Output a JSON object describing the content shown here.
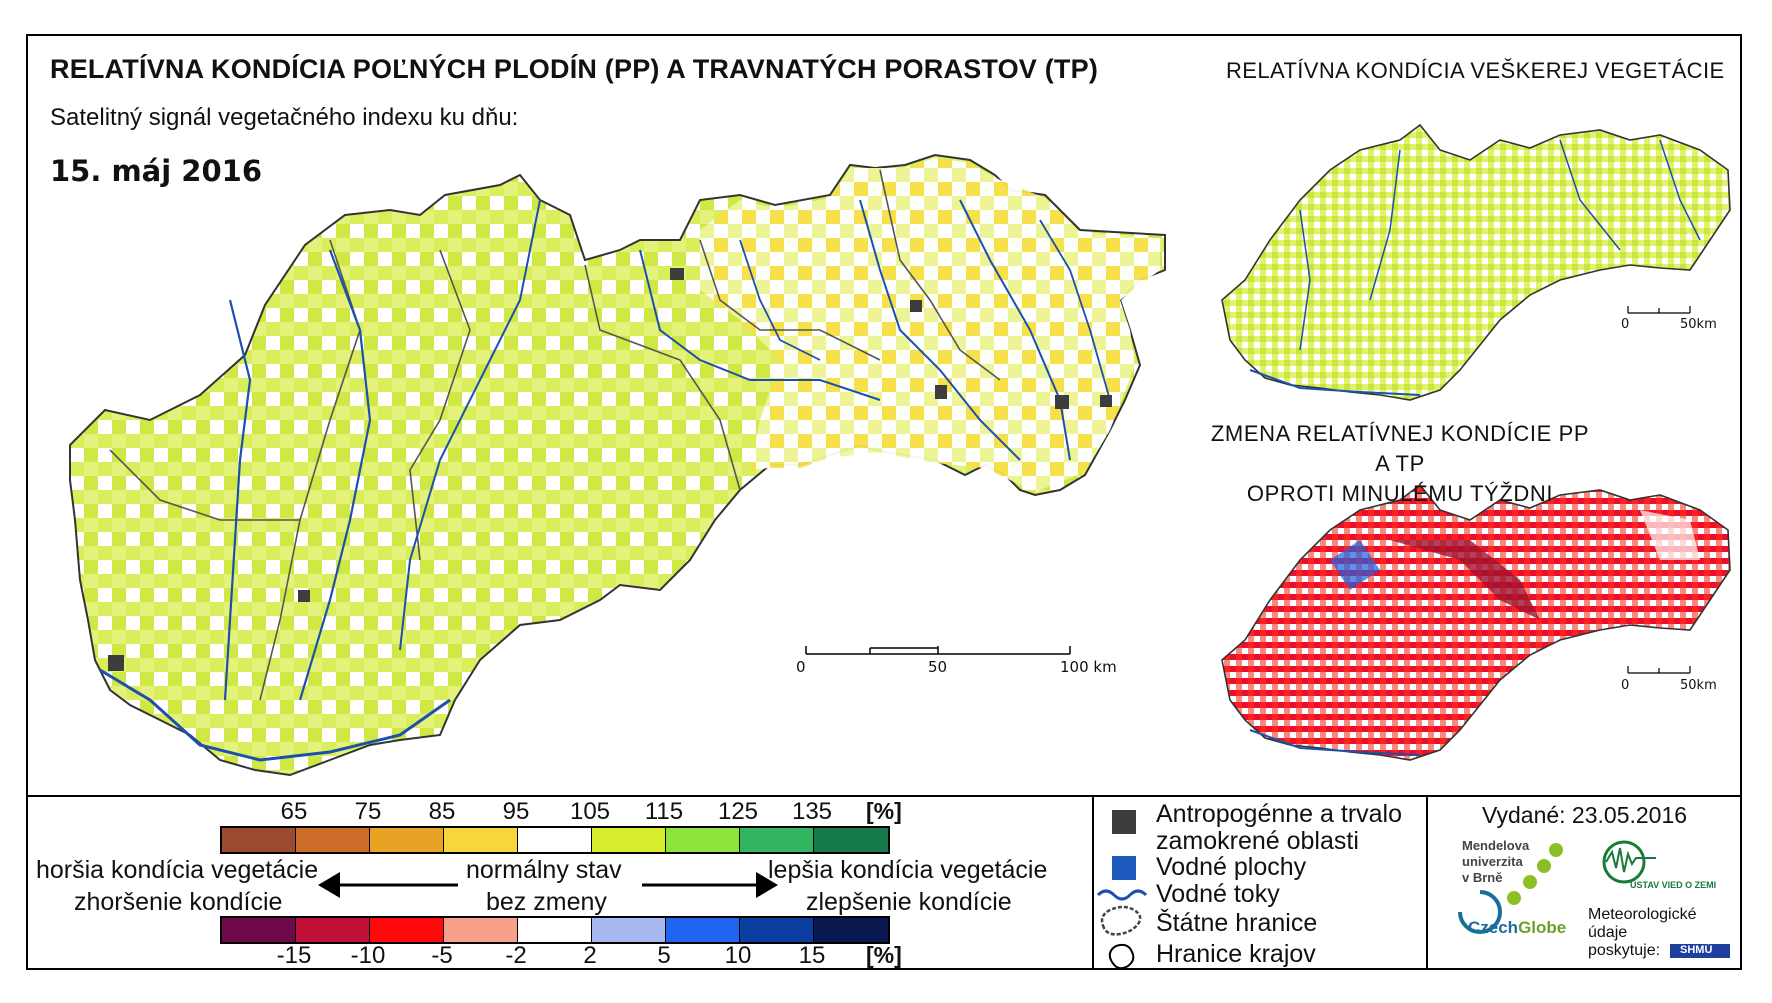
{
  "header": {
    "title_main": "RELATÍVNA KONDÍCIA POĽNÝCH PLODÍN (PP) A TRAVNATÝCH PORASTOV (TP)",
    "title_right": "RELATÍVNA KONDÍCIA VEŠKEREJ VEGETÁCIE",
    "subtitle": "Satelitný signál vegetačného indexu ku dňu:",
    "date": "15. máj 2016"
  },
  "inset_change": {
    "title_line1": "ZMENA RELATÍVNEJ KONDÍCIE PP A TP",
    "title_line2": "OPROTI MINULÉMU TÝŽDNI"
  },
  "scalebars": {
    "main": {
      "zero": "0",
      "mid": "50",
      "end": "100 km"
    },
    "inset_top": {
      "zero": "0",
      "end": "50km"
    },
    "inset_bottom": {
      "zero": "0",
      "end": "50km"
    }
  },
  "legend": {
    "condition_ticks": [
      "65",
      "75",
      "85",
      "95",
      "105",
      "115",
      "125",
      "135"
    ],
    "condition_unit": "[%]",
    "condition_colors": [
      "#9c4a30",
      "#cc6d2a",
      "#e9a224",
      "#f8d63a",
      "#ffffff",
      "#d7ee2e",
      "#8de43a",
      "#33b460",
      "#147a4a"
    ],
    "change_ticks": [
      "-15",
      "-10",
      "-5",
      "-2",
      "2",
      "5",
      "10",
      "15"
    ],
    "change_unit": "[%]",
    "change_colors": [
      "#6e0a4a",
      "#c0103a",
      "#ff0a0a",
      "#f8a08a",
      "#ffffff",
      "#a8b8f0",
      "#1e66f0",
      "#0a3ea0",
      "#0a1a50"
    ],
    "worse_condition": "horšia kondícia vegetácie",
    "worse_change": "zhoršenie kondície",
    "normal": "normálny stav",
    "no_change": "bez zmeny",
    "better_condition": "lepšia kondícia vegetácie",
    "better_change": "zlepšenie kondície"
  },
  "map_key": {
    "anthropogenic_line1": "Antropogénne a trvalo",
    "anthropogenic_line2": "zamokrené oblasti",
    "water_bodies": "Vodné plochy",
    "water_streams": "Vodné toky",
    "state_borders": "Štátne hranice",
    "region_borders": "Hranice krajov",
    "colors": {
      "anthropogenic": "#3d3d3d",
      "water_bodies": "#1e5bbf",
      "streams": "#1c4fae"
    }
  },
  "credits": {
    "issued": "Vydané: 23.05.2016",
    "mendel_line1": "Mendelova",
    "mendel_line2": "univerzita",
    "mendel_line3": "v Brně",
    "czechglobe_a": "Czech",
    "czechglobe_b": "Globe",
    "ustav": "ÚSTAV VIED O ZEMI",
    "meteo_line1": "Meteorologické",
    "meteo_line2": "údaje",
    "meteo_line3": "poskytuje:",
    "shmu": "SHMÚ"
  }
}
